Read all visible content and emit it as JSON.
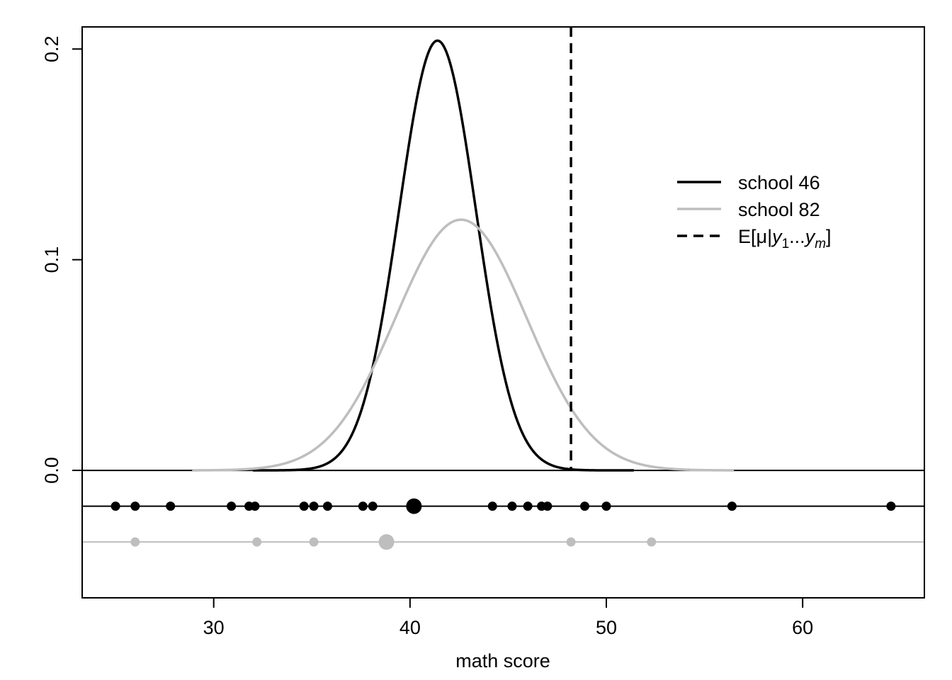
{
  "chart_data": {
    "type": "line",
    "title": "",
    "xlabel": "math score",
    "ylabel": "",
    "xlim": [
      23.3,
      66.2
    ],
    "ylim": [
      -0.0605,
      0.2105
    ],
    "x_ticks": [
      30,
      40,
      50,
      60
    ],
    "y_ticks": [
      0.0,
      0.1,
      0.2
    ],
    "x_tick_labels": [
      "30",
      "40",
      "50",
      "60"
    ],
    "y_tick_labels": [
      "0.0",
      "0.1",
      "0.2"
    ],
    "grid": false,
    "legend_position": "right",
    "series": [
      {
        "name": "school 46",
        "kind": "normal-density",
        "mean": 41.4,
        "peak": 0.204,
        "x_range": [
          32.0,
          51.4
        ],
        "color": "#000000",
        "dash": "solid"
      },
      {
        "name": "school 82",
        "kind": "normal-density",
        "mean": 42.6,
        "peak": 0.119,
        "x_range": [
          28.9,
          56.5
        ],
        "color": "#bebebe",
        "dash": "solid"
      }
    ],
    "reference_line": {
      "name": "E[μ|y1...ym]",
      "x": 48.2,
      "color": "#000000",
      "dash": "dashed"
    },
    "zero_line": 0.0,
    "strip_plots": [
      {
        "series": "school 46",
        "y": -0.017,
        "color": "#000000",
        "points": [
          25.0,
          26.0,
          27.8,
          30.9,
          31.8,
          32.1,
          34.6,
          35.1,
          35.8,
          37.6,
          38.1,
          44.2,
          45.2,
          46.0,
          46.7,
          47.0,
          48.9,
          50.0,
          56.4,
          64.5
        ],
        "mean": 40.2
      },
      {
        "series": "school 82",
        "y": -0.034,
        "color": "#bebebe",
        "points": [
          26.0,
          32.2,
          35.1,
          48.2,
          52.3
        ],
        "mean": 38.8
      }
    ]
  },
  "legend": {
    "items": [
      {
        "label": "school 46",
        "color": "#000000",
        "dash": "solid"
      },
      {
        "label": "school 82",
        "color": "#bebebe",
        "dash": "solid"
      },
      {
        "label_prefix": "E[μ|",
        "y1": "y",
        "sub1": "1",
        "dots": "...",
        "y2": "y",
        "sub2": "m",
        "label_suffix": "]",
        "color": "#000000",
        "dash": "dashed"
      }
    ]
  }
}
